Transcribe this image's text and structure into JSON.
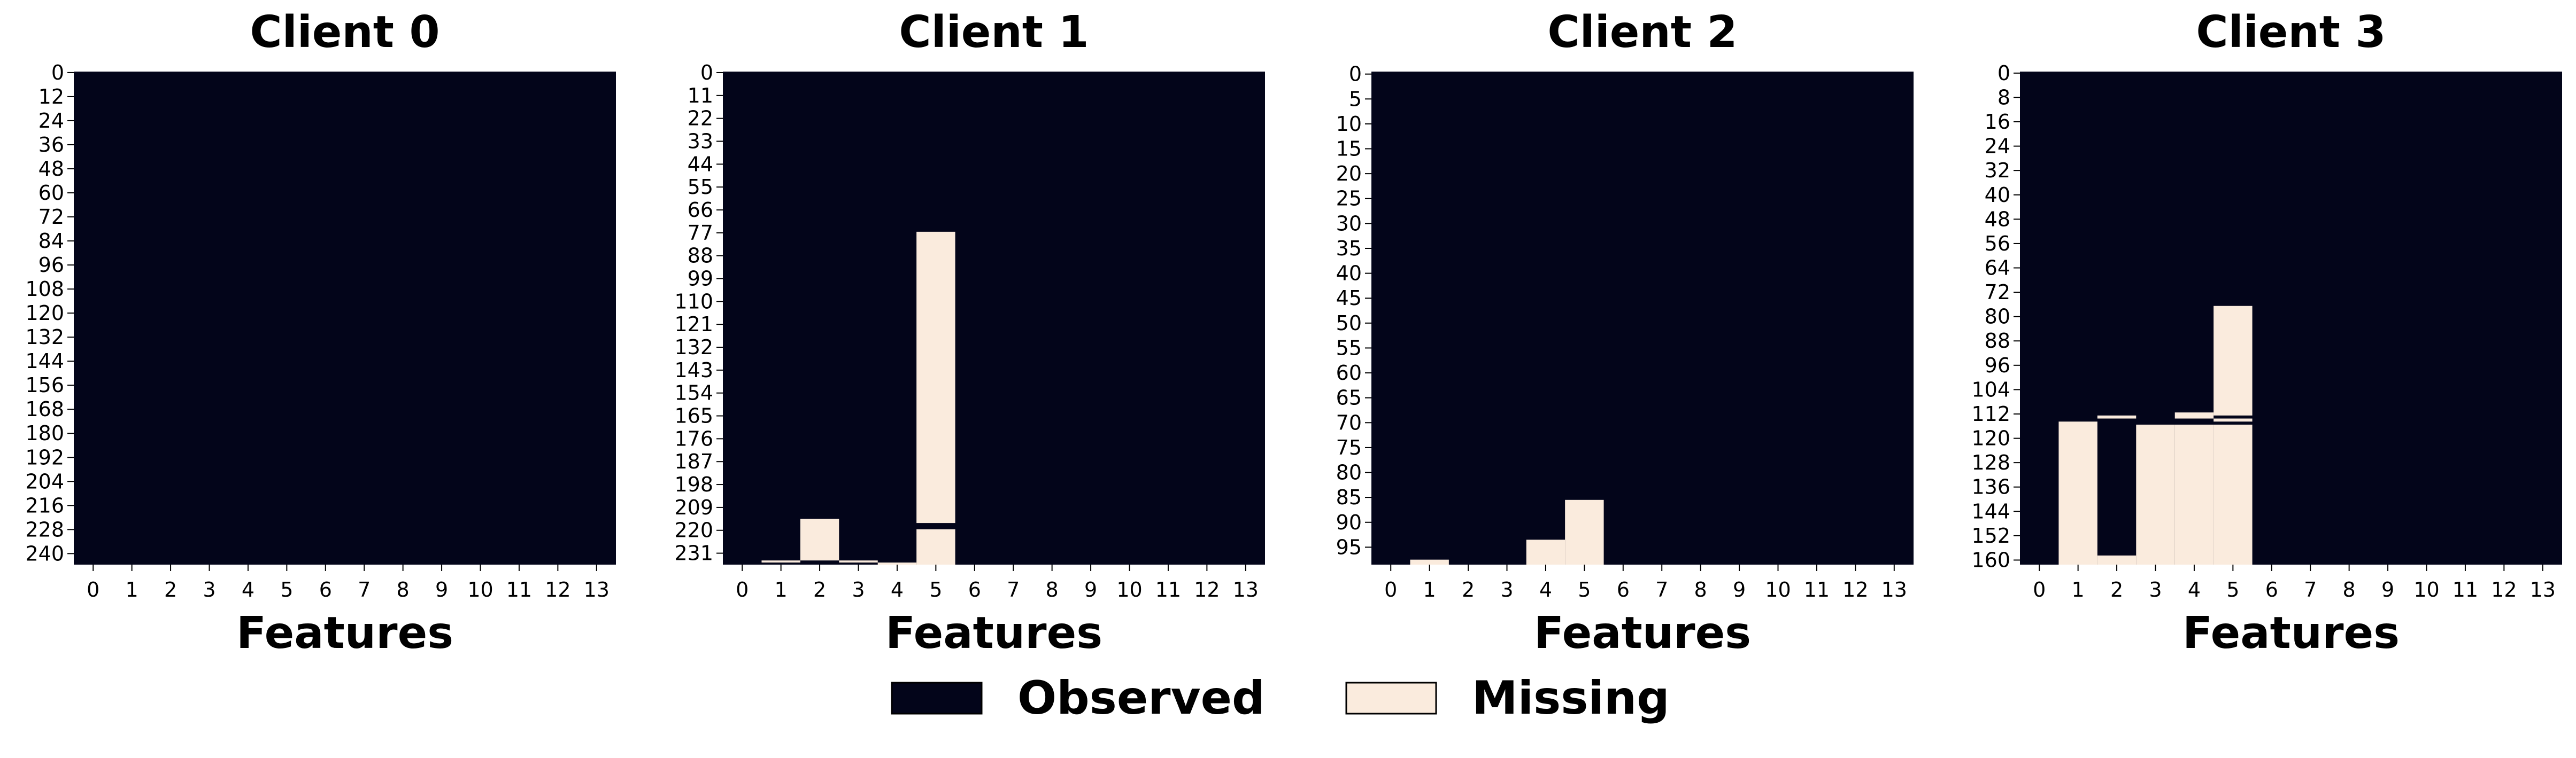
{
  "colors": {
    "observed": "#03051a",
    "missing": "#faebdd"
  },
  "legend": [
    {
      "label": "Observed",
      "color": "#03051a"
    },
    {
      "label": "Missing",
      "color": "#faebdd"
    }
  ],
  "chart_data": [
    {
      "type": "heatmap",
      "title": "Client 0",
      "xlabel": "Features",
      "x_ticks": [
        "0",
        "1",
        "2",
        "3",
        "4",
        "5",
        "6",
        "7",
        "8",
        "9",
        "10",
        "11",
        "12",
        "13"
      ],
      "y_ticks": [
        "0",
        "12",
        "24",
        "36",
        "48",
        "60",
        "72",
        "84",
        "96",
        "108",
        "120",
        "132",
        "144",
        "156",
        "168",
        "180",
        "192",
        "204",
        "216",
        "228",
        "240"
      ],
      "y_tick_step": 12,
      "n_rows": 246,
      "n_features": 14,
      "missing": []
    },
    {
      "type": "heatmap",
      "title": "Client 1",
      "xlabel": "Features",
      "x_ticks": [
        "0",
        "1",
        "2",
        "3",
        "4",
        "5",
        "6",
        "7",
        "8",
        "9",
        "10",
        "11",
        "12",
        "13"
      ],
      "y_ticks": [
        "0",
        "11",
        "22",
        "33",
        "44",
        "55",
        "66",
        "77",
        "88",
        "99",
        "110",
        "121",
        "132",
        "143",
        "154",
        "165",
        "176",
        "187",
        "198",
        "209",
        "220",
        "231"
      ],
      "y_tick_step": 11,
      "n_rows": 237,
      "n_features": 14,
      "missing": [
        {
          "feature": 1,
          "row_start": 235,
          "row_end": 236
        },
        {
          "feature": 2,
          "row_start": 215,
          "row_end": 235
        },
        {
          "feature": 3,
          "row_start": 235,
          "row_end": 236
        },
        {
          "feature": 4,
          "row_start": 236,
          "row_end": 237
        },
        {
          "feature": 5,
          "row_start": 77,
          "row_end": 217
        },
        {
          "feature": 5,
          "row_start": 220,
          "row_end": 237
        }
      ]
    },
    {
      "type": "heatmap",
      "title": "Client 2",
      "xlabel": "Features",
      "x_ticks": [
        "0",
        "1",
        "2",
        "3",
        "4",
        "5",
        "6",
        "7",
        "8",
        "9",
        "10",
        "11",
        "12",
        "13"
      ],
      "y_ticks": [
        "0",
        "5",
        "10",
        "15",
        "20",
        "25",
        "30",
        "35",
        "40",
        "45",
        "50",
        "55",
        "60",
        "65",
        "70",
        "75",
        "80",
        "85",
        "90",
        "95"
      ],
      "y_tick_step": 5,
      "n_rows": 99,
      "n_features": 14,
      "missing": [
        {
          "feature": 1,
          "row_start": 98,
          "row_end": 99
        },
        {
          "feature": 4,
          "row_start": 94,
          "row_end": 99
        },
        {
          "feature": 5,
          "row_start": 86,
          "row_end": 99
        }
      ]
    },
    {
      "type": "heatmap",
      "title": "Client 3",
      "xlabel": "Features",
      "x_ticks": [
        "0",
        "1",
        "2",
        "3",
        "4",
        "5",
        "6",
        "7",
        "8",
        "9",
        "10",
        "11",
        "12",
        "13"
      ],
      "y_ticks": [
        "0",
        "8",
        "16",
        "24",
        "32",
        "40",
        "48",
        "56",
        "64",
        "72",
        "80",
        "88",
        "96",
        "104",
        "112",
        "120",
        "128",
        "136",
        "144",
        "152",
        "160"
      ],
      "y_tick_step": 8,
      "n_rows": 162,
      "n_features": 14,
      "missing": [
        {
          "feature": 1,
          "row_start": 115,
          "row_end": 162
        },
        {
          "feature": 2,
          "row_start": 113,
          "row_end": 114
        },
        {
          "feature": 2,
          "row_start": 159,
          "row_end": 162
        },
        {
          "feature": 3,
          "row_start": 116,
          "row_end": 162
        },
        {
          "feature": 4,
          "row_start": 112,
          "row_end": 114
        },
        {
          "feature": 4,
          "row_start": 116,
          "row_end": 162
        },
        {
          "feature": 5,
          "row_start": 77,
          "row_end": 113
        },
        {
          "feature": 5,
          "row_start": 114,
          "row_end": 115
        },
        {
          "feature": 5,
          "row_start": 116,
          "row_end": 162
        }
      ]
    }
  ]
}
